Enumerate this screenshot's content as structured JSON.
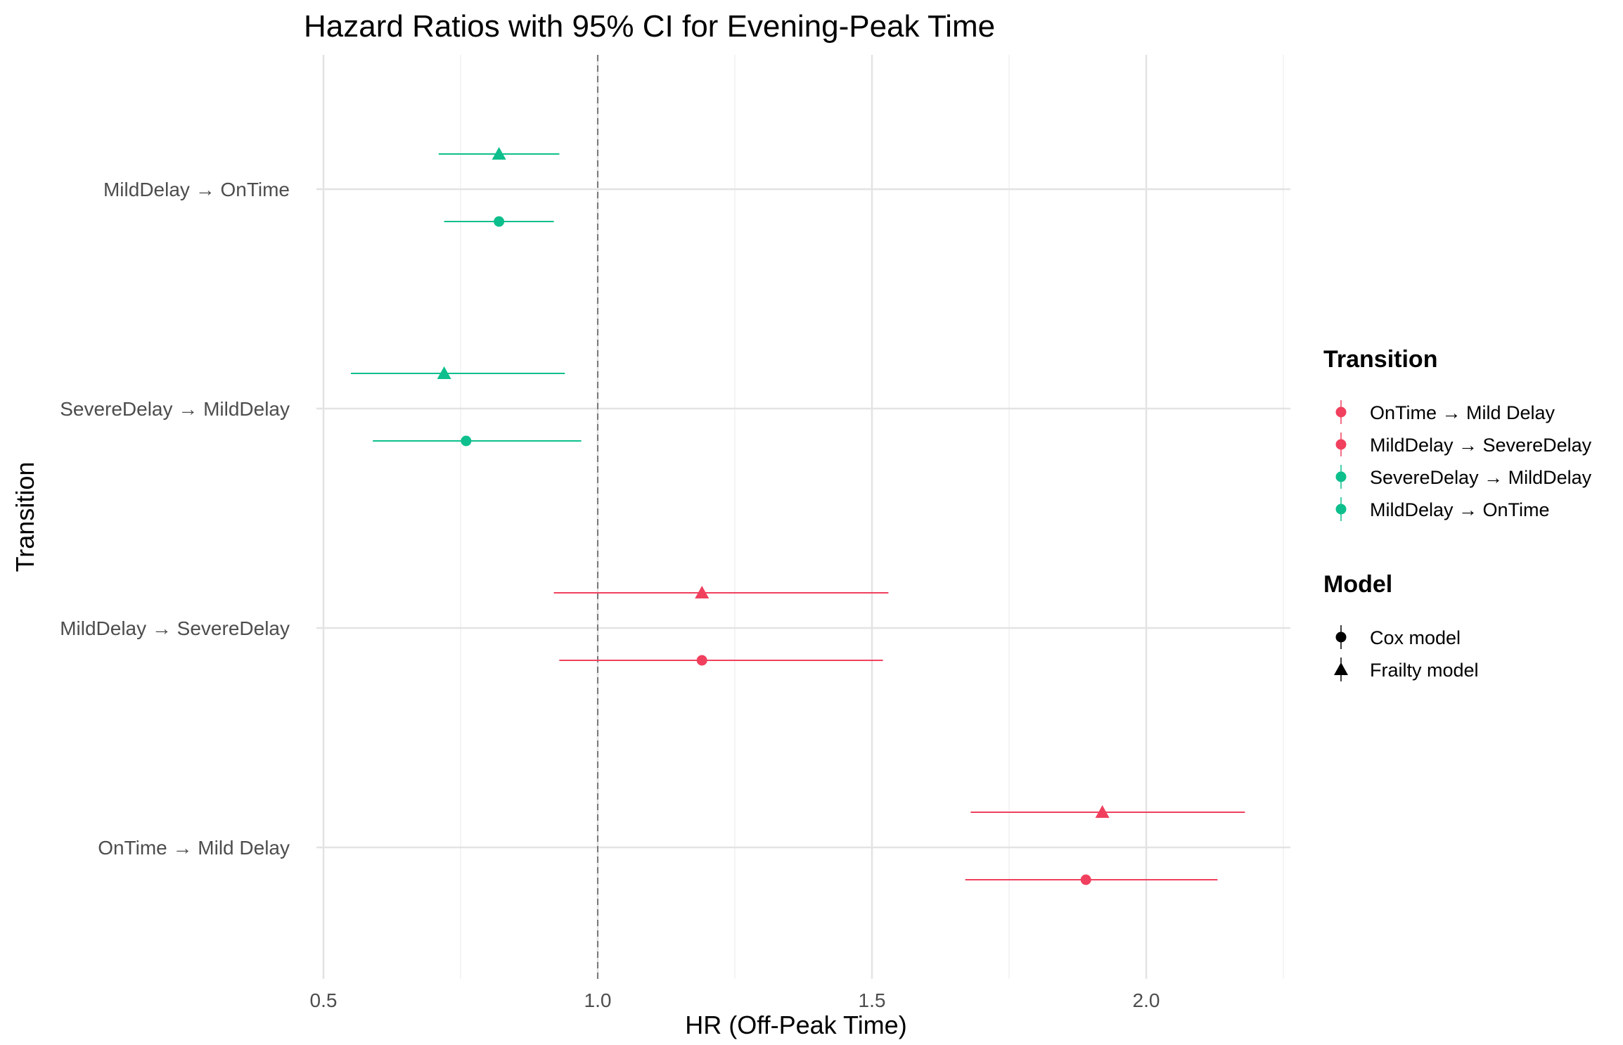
{
  "chart_data": {
    "type": "forest",
    "title": "Hazard Ratios with 95% CI for Evening-Peak Time",
    "xlabel": "HR (Off-Peak Time)",
    "ylabel": "Transition",
    "xlim": [
      0.5,
      2.25
    ],
    "xticks": [
      "0.5",
      "1.0",
      "1.5",
      "2.0"
    ],
    "reference_line": 1.0,
    "grid": true,
    "categories": [
      "OnTime → Mild Delay",
      "MildDelay → SevereDelay",
      "SevereDelay → MildDelay",
      "MildDelay → OnTime"
    ],
    "colors": {
      "OnTime → Mild Delay": "#F0405E",
      "MildDelay → SevereDelay": "#F0405E",
      "SevereDelay → MildDelay": "#0DBF8C",
      "MildDelay → OnTime": "#0DBF8C"
    },
    "series": [
      {
        "name": "Cox model",
        "marker": "circle",
        "points": [
          {
            "transition": "OnTime → Mild Delay",
            "hr": 1.89,
            "lower": 1.67,
            "upper": 2.13
          },
          {
            "transition": "MildDelay → SevereDelay",
            "hr": 1.19,
            "lower": 0.93,
            "upper": 1.52
          },
          {
            "transition": "SevereDelay → MildDelay",
            "hr": 0.76,
            "lower": 0.59,
            "upper": 0.97
          },
          {
            "transition": "MildDelay → OnTime",
            "hr": 0.82,
            "lower": 0.72,
            "upper": 0.92
          }
        ]
      },
      {
        "name": "Frailty model",
        "marker": "triangle",
        "points": [
          {
            "transition": "OnTime → Mild Delay",
            "hr": 1.92,
            "lower": 1.68,
            "upper": 2.18
          },
          {
            "transition": "MildDelay → SevereDelay",
            "hr": 1.19,
            "lower": 0.92,
            "upper": 1.53
          },
          {
            "transition": "SevereDelay → MildDelay",
            "hr": 0.72,
            "lower": 0.55,
            "upper": 0.94
          },
          {
            "transition": "MildDelay → OnTime",
            "hr": 0.82,
            "lower": 0.71,
            "upper": 0.93
          }
        ]
      }
    ],
    "legend": {
      "placement": "right",
      "transition_title": "Transition",
      "transition_items": [
        "OnTime → Mild Delay",
        "MildDelay → SevereDelay",
        "SevereDelay → MildDelay",
        "MildDelay → OnTime"
      ],
      "model_title": "Model",
      "model_items": [
        "Cox model",
        "Frailty model"
      ]
    }
  }
}
